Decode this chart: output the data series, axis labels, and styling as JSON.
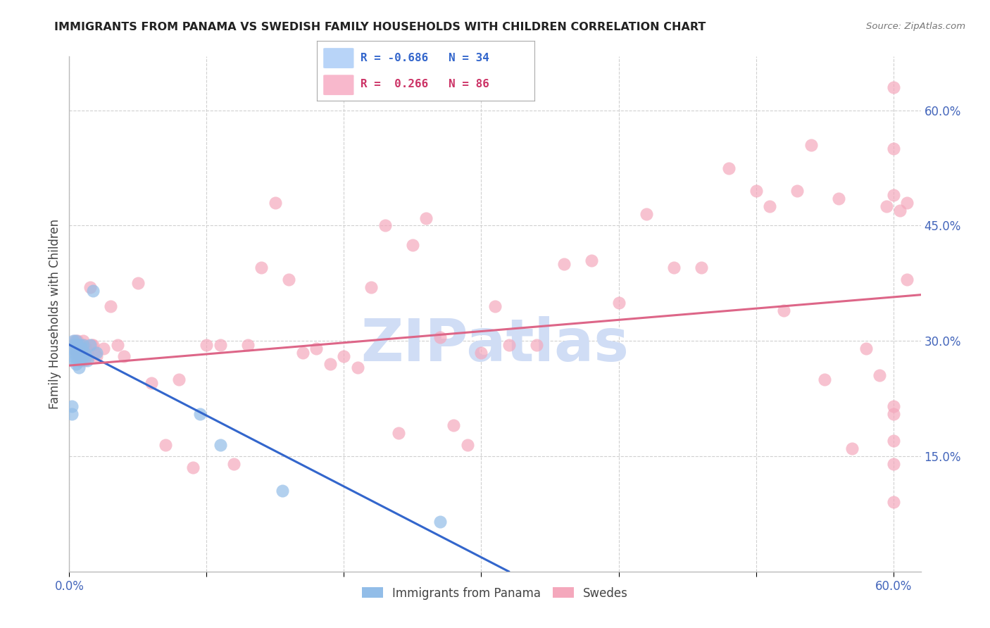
{
  "title": "IMMIGRANTS FROM PANAMA VS SWEDISH FAMILY HOUSEHOLDS WITH CHILDREN CORRELATION CHART",
  "source": "Source: ZipAtlas.com",
  "ylabel": "Family Households with Children",
  "x_ticks": [
    0.0,
    0.1,
    0.2,
    0.3,
    0.4,
    0.5,
    0.6
  ],
  "x_tick_labels": [
    "0.0%",
    "",
    "",
    "",
    "",
    "",
    "60.0%"
  ],
  "y_tick_vals_right": [
    0.15,
    0.3,
    0.45,
    0.6
  ],
  "y_tick_labels_right": [
    "15.0%",
    "30.0%",
    "45.0%",
    "60.0%"
  ],
  "xlim": [
    0.0,
    0.62
  ],
  "ylim": [
    0.0,
    0.67
  ],
  "watermark": "ZIPatlas",
  "blue_scatter_x": [
    0.002,
    0.002,
    0.003,
    0.003,
    0.003,
    0.004,
    0.004,
    0.004,
    0.005,
    0.005,
    0.005,
    0.005,
    0.006,
    0.006,
    0.007,
    0.007,
    0.007,
    0.008,
    0.008,
    0.008,
    0.009,
    0.009,
    0.01,
    0.01,
    0.011,
    0.012,
    0.013,
    0.015,
    0.017,
    0.02,
    0.095,
    0.11,
    0.155,
    0.27
  ],
  "blue_scatter_y": [
    0.215,
    0.205,
    0.3,
    0.29,
    0.28,
    0.295,
    0.285,
    0.275,
    0.3,
    0.29,
    0.28,
    0.27,
    0.295,
    0.285,
    0.285,
    0.275,
    0.265,
    0.295,
    0.285,
    0.275,
    0.29,
    0.28,
    0.295,
    0.28,
    0.285,
    0.28,
    0.275,
    0.295,
    0.365,
    0.285,
    0.205,
    0.165,
    0.105,
    0.065
  ],
  "pink_scatter_x": [
    0.003,
    0.004,
    0.005,
    0.005,
    0.006,
    0.006,
    0.007,
    0.007,
    0.008,
    0.008,
    0.009,
    0.009,
    0.01,
    0.01,
    0.011,
    0.011,
    0.012,
    0.013,
    0.014,
    0.015,
    0.016,
    0.017,
    0.018,
    0.02,
    0.025,
    0.03,
    0.035,
    0.04,
    0.05,
    0.06,
    0.07,
    0.08,
    0.09,
    0.1,
    0.11,
    0.12,
    0.13,
    0.14,
    0.15,
    0.16,
    0.17,
    0.18,
    0.19,
    0.2,
    0.21,
    0.22,
    0.23,
    0.24,
    0.25,
    0.26,
    0.27,
    0.28,
    0.29,
    0.3,
    0.31,
    0.32,
    0.34,
    0.36,
    0.38,
    0.4,
    0.42,
    0.44,
    0.46,
    0.48,
    0.5,
    0.51,
    0.52,
    0.53,
    0.54,
    0.55,
    0.56,
    0.57,
    0.58,
    0.59,
    0.595,
    0.6,
    0.6,
    0.6,
    0.6,
    0.6,
    0.6,
    0.6,
    0.6,
    0.605,
    0.61,
    0.61
  ],
  "pink_scatter_y": [
    0.295,
    0.3,
    0.295,
    0.285,
    0.3,
    0.285,
    0.295,
    0.28,
    0.295,
    0.28,
    0.29,
    0.275,
    0.3,
    0.28,
    0.295,
    0.275,
    0.29,
    0.285,
    0.28,
    0.37,
    0.295,
    0.295,
    0.285,
    0.28,
    0.29,
    0.345,
    0.295,
    0.28,
    0.375,
    0.245,
    0.165,
    0.25,
    0.135,
    0.295,
    0.295,
    0.14,
    0.295,
    0.395,
    0.48,
    0.38,
    0.285,
    0.29,
    0.27,
    0.28,
    0.265,
    0.37,
    0.45,
    0.18,
    0.425,
    0.46,
    0.305,
    0.19,
    0.165,
    0.285,
    0.345,
    0.295,
    0.295,
    0.4,
    0.405,
    0.35,
    0.465,
    0.395,
    0.395,
    0.525,
    0.495,
    0.475,
    0.34,
    0.495,
    0.555,
    0.25,
    0.485,
    0.16,
    0.29,
    0.255,
    0.475,
    0.205,
    0.215,
    0.17,
    0.14,
    0.09,
    0.63,
    0.55,
    0.49,
    0.47,
    0.38,
    0.48
  ],
  "blue_line_x": [
    0.0,
    0.32
  ],
  "blue_line_y": [
    0.295,
    0.0
  ],
  "pink_line_x": [
    0.0,
    0.62
  ],
  "pink_line_y": [
    0.268,
    0.36
  ],
  "blue_color": "#92bde8",
  "pink_color": "#f4a8bc",
  "blue_line_color": "#3366cc",
  "pink_line_color": "#dd6688",
  "grid_color": "#d0d0d0",
  "background_color": "#ffffff",
  "title_color": "#222222",
  "axis_label_color": "#444444",
  "right_tick_color": "#4466bb",
  "watermark_color": "#d0ddf5",
  "legend_box_blue": "#b8d4f8",
  "legend_box_pink": "#f8b8cc",
  "legend_text_blue": "#3366cc",
  "legend_text_pink": "#cc3366",
  "legend_label_blue": "R = -0.686   N = 34",
  "legend_label_pink": "R =  0.266   N = 86",
  "bottom_legend_blue": "Immigrants from Panama",
  "bottom_legend_pink": "Swedes"
}
